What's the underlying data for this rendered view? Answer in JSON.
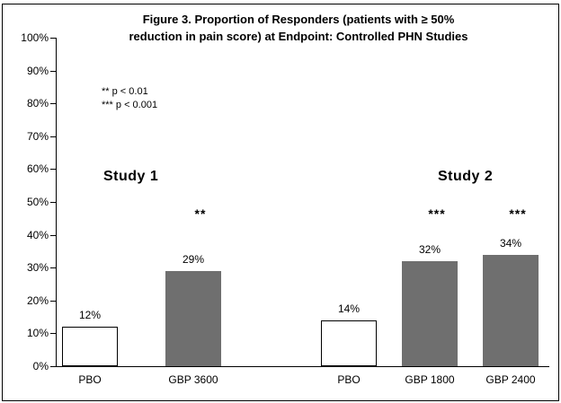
{
  "figure": {
    "title_line1": "Figure 3. Proportion of Responders (patients with ≥ 50%",
    "title_line2": "reduction in pain score) at Endpoint: Controlled PHN Studies"
  },
  "legend": {
    "line1": "** p < 0.01",
    "line2": "*** p < 0.001"
  },
  "chart_data": {
    "type": "bar",
    "title": "Figure 3. Proportion of Responders (patients with ≥ 50% reduction in pain score) at Endpoint: Controlled PHN Studies",
    "xlabel": "",
    "ylabel": "",
    "ylim": [
      0,
      100
    ],
    "grid": false,
    "legend_position": "upper-left-inside",
    "y_ticks": [
      "0%",
      "10%",
      "20%",
      "30%",
      "40%",
      "50%",
      "60%",
      "70%",
      "80%",
      "90%",
      "100%"
    ],
    "group_labels": [
      "Study 1",
      "Study 2"
    ],
    "significance_notes": [
      "** p < 0.01",
      "*** p < 0.001"
    ],
    "bars": [
      {
        "group": "Study 1",
        "category": "PBO",
        "value": 12,
        "value_label": "12%",
        "fill": "white",
        "sig": ""
      },
      {
        "group": "Study 1",
        "category": "GBP 3600",
        "value": 29,
        "value_label": "29%",
        "fill": "gray",
        "sig": "**"
      },
      {
        "group": "Study 2",
        "category": "PBO",
        "value": 14,
        "value_label": "14%",
        "fill": "white",
        "sig": ""
      },
      {
        "group": "Study 2",
        "category": "GBP 1800",
        "value": 32,
        "value_label": "32%",
        "fill": "gray",
        "sig": "***"
      },
      {
        "group": "Study 2",
        "category": "GBP 2400",
        "value": 34,
        "value_label": "34%",
        "fill": "gray",
        "sig": "***"
      }
    ],
    "colors": {
      "bar_gray": "#6f6f6f",
      "bar_white": "#ffffff",
      "bar_border": "#000000",
      "axis": "#000000",
      "background": "#ffffff"
    }
  }
}
